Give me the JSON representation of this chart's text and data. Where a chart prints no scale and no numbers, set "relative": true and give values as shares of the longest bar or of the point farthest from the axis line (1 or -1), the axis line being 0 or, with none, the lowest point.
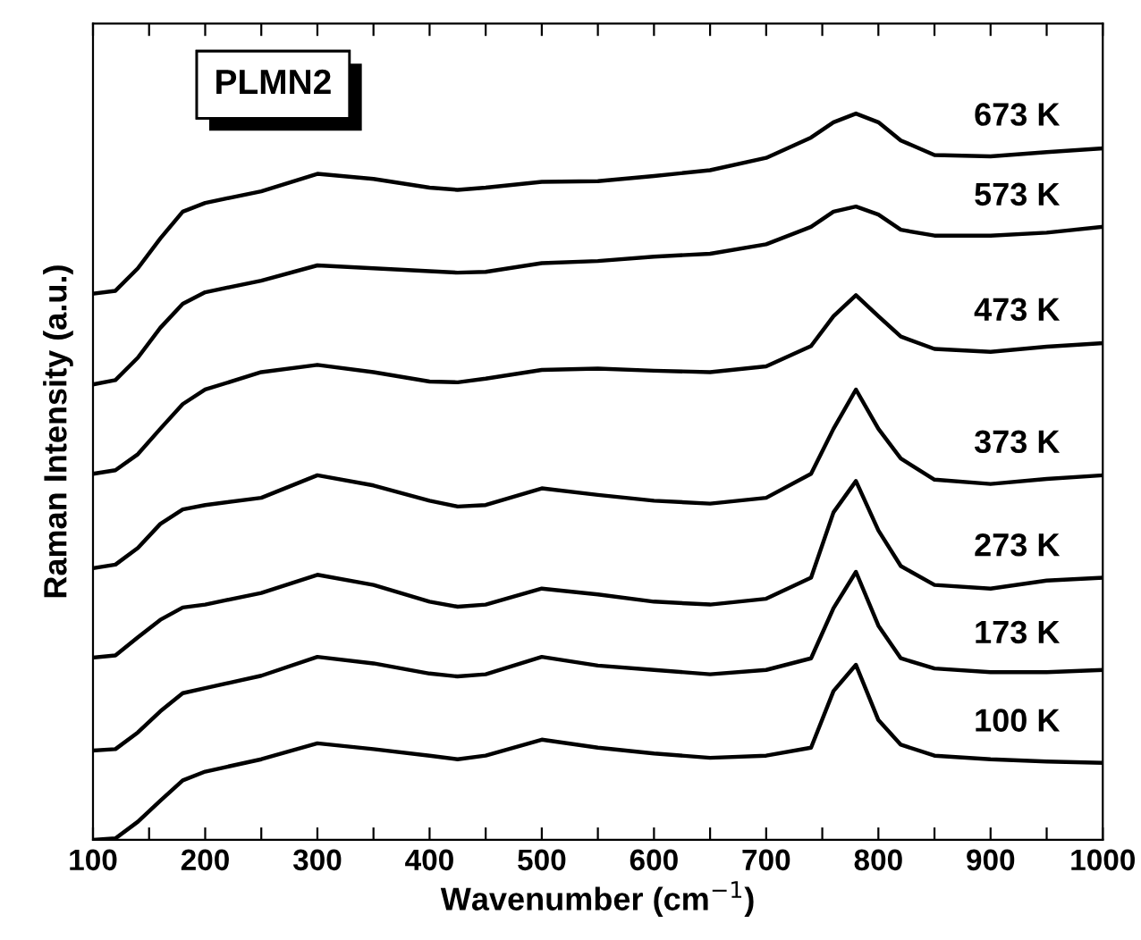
{
  "chart_data": {
    "type": "line",
    "relative": true,
    "xlabel": "Wavenumber (cm$^{−1}$)",
    "ylabel": "Raman Intensity (a.u.)",
    "annotations": [
      "PLMN2"
    ],
    "x": [
      100,
      120,
      140,
      160,
      180,
      200,
      250,
      300,
      350,
      400,
      425,
      450,
      500,
      550,
      600,
      650,
      700,
      740,
      760,
      780,
      800,
      820,
      850,
      900,
      950,
      1000
    ],
    "xlim": [
      100,
      1000
    ],
    "xticks": [
      100,
      {
        "value": 150,
        "label": null
      },
      200,
      {
        "value": 250,
        "label": null
      },
      300,
      {
        "value": 350,
        "label": null
      },
      400,
      {
        "value": 450,
        "label": null
      },
      500,
      {
        "value": 550,
        "label": null
      },
      600,
      {
        "value": 650,
        "label": null
      },
      700,
      {
        "value": 750,
        "label": null
      },
      800,
      {
        "value": 850,
        "label": null
      },
      900,
      {
        "value": 950,
        "label": null
      },
      1000
    ],
    "grid": false,
    "legend": false,
    "marker": "none",
    "line_style": "solid",
    "series": [
      {
        "name": "100 K",
        "color": "#000000",
        "values": [
          0,
          0.002,
          0.025,
          0.054,
          0.082,
          0.094,
          0.111,
          0.133,
          0.125,
          0.116,
          0.111,
          0.116,
          0.138,
          0.127,
          0.119,
          0.113,
          0.116,
          0.127,
          0.205,
          0.241,
          0.165,
          0.131,
          0.116,
          0.111,
          0.108,
          0.106
        ]
      },
      {
        "name": "173 K",
        "color": "#000000",
        "values": [
          0.123,
          0.125,
          0.148,
          0.177,
          0.202,
          0.209,
          0.226,
          0.252,
          0.243,
          0.229,
          0.225,
          0.228,
          0.252,
          0.24,
          0.234,
          0.228,
          0.234,
          0.25,
          0.319,
          0.369,
          0.295,
          0.25,
          0.236,
          0.231,
          0.231,
          0.234
        ]
      },
      {
        "name": "273 K",
        "color": "#000000",
        "values": [
          0.251,
          0.254,
          0.279,
          0.303,
          0.32,
          0.324,
          0.34,
          0.365,
          0.351,
          0.328,
          0.321,
          0.324,
          0.346,
          0.338,
          0.328,
          0.324,
          0.332,
          0.361,
          0.451,
          0.494,
          0.426,
          0.377,
          0.351,
          0.346,
          0.357,
          0.361
        ]
      },
      {
        "name": "373 K",
        "color": "#000000",
        "values": [
          0.374,
          0.379,
          0.402,
          0.435,
          0.455,
          0.461,
          0.471,
          0.502,
          0.488,
          0.467,
          0.459,
          0.461,
          0.484,
          0.475,
          0.467,
          0.463,
          0.471,
          0.504,
          0.566,
          0.62,
          0.566,
          0.525,
          0.496,
          0.49,
          0.497,
          0.502
        ]
      },
      {
        "name": "473 K",
        "color": "#000000",
        "values": [
          0.504,
          0.509,
          0.531,
          0.566,
          0.6,
          0.62,
          0.644,
          0.654,
          0.644,
          0.631,
          0.63,
          0.635,
          0.647,
          0.649,
          0.646,
          0.644,
          0.652,
          0.68,
          0.721,
          0.75,
          0.721,
          0.693,
          0.676,
          0.672,
          0.679,
          0.684
        ]
      },
      {
        "name": "573 K",
        "color": "#000000",
        "values": [
          0.627,
          0.633,
          0.664,
          0.705,
          0.738,
          0.754,
          0.77,
          0.791,
          0.787,
          0.783,
          0.781,
          0.782,
          0.794,
          0.797,
          0.803,
          0.807,
          0.82,
          0.844,
          0.865,
          0.872,
          0.861,
          0.84,
          0.832,
          0.832,
          0.836,
          0.844
        ]
      },
      {
        "name": "673 K",
        "color": "#000000",
        "values": [
          0.752,
          0.756,
          0.787,
          0.828,
          0.865,
          0.877,
          0.893,
          0.917,
          0.91,
          0.898,
          0.895,
          0.898,
          0.906,
          0.907,
          0.914,
          0.922,
          0.939,
          0.967,
          0.988,
          1.0,
          0.988,
          0.963,
          0.943,
          0.941,
          0.947,
          0.952
        ]
      }
    ]
  }
}
